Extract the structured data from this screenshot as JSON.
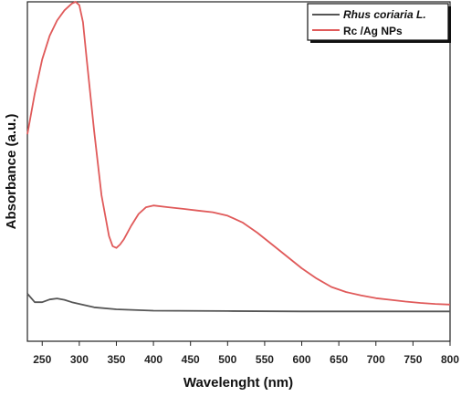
{
  "chart_data": {
    "type": "line",
    "title": "",
    "xlabel": "Wavelenght (nm)",
    "ylabel": "Absorbance (a.u.)",
    "xlim": [
      230,
      800
    ],
    "ylim": [
      0,
      100
    ],
    "xticks": [
      250,
      300,
      350,
      400,
      450,
      500,
      550,
      600,
      650,
      700,
      750,
      800
    ],
    "tick_labels": [
      "250",
      "300",
      "350",
      "400",
      "450",
      "500",
      "550",
      "600",
      "650",
      "700",
      "750",
      "800"
    ],
    "legend_position": "top-right",
    "grid": false,
    "series": [
      {
        "name": "Rhus coriaria L.",
        "color": "#555555",
        "x": [
          230,
          240,
          250,
          260,
          270,
          280,
          290,
          300,
          320,
          350,
          400,
          500,
          600,
          700,
          800
        ],
        "y": [
          14,
          11.5,
          11.5,
          12.3,
          12.6,
          12.2,
          11.5,
          11,
          10,
          9.4,
          9,
          8.9,
          8.8,
          8.8,
          8.8
        ]
      },
      {
        "name": "Rc /Ag NPs",
        "color": "#e05a5a",
        "x": [
          230,
          240,
          250,
          260,
          270,
          280,
          290,
          295,
          300,
          305,
          310,
          320,
          330,
          340,
          345,
          350,
          355,
          360,
          370,
          380,
          390,
          400,
          420,
          440,
          460,
          480,
          500,
          520,
          540,
          560,
          580,
          600,
          620,
          640,
          660,
          680,
          700,
          720,
          740,
          760,
          780,
          800
        ],
        "y": [
          61,
          73,
          83,
          90,
          94.5,
          97.5,
          99.5,
          100,
          99,
          94,
          83,
          62,
          43,
          31,
          28,
          27.5,
          28.5,
          30,
          34,
          37.5,
          39.5,
          40,
          39.5,
          39,
          38.5,
          38,
          37,
          35,
          32,
          28.5,
          25,
          21.5,
          18.5,
          16,
          14.5,
          13.5,
          12.7,
          12.2,
          11.7,
          11.3,
          11,
          10.8
        ]
      }
    ]
  }
}
